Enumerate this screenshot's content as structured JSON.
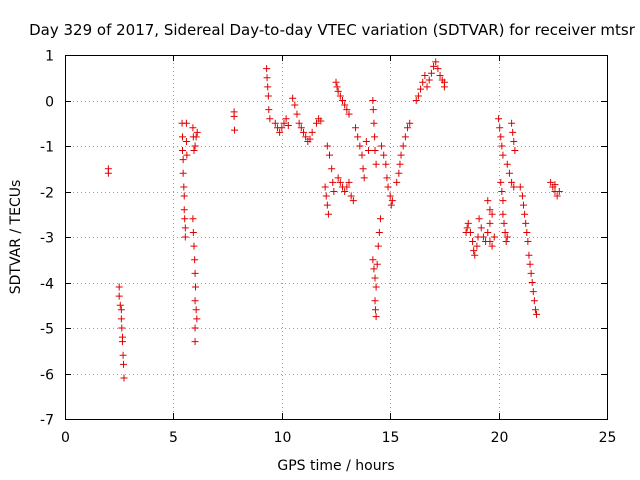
{
  "chart_data": {
    "type": "scatter",
    "title": "Day 329 of 2017, Sidereal Day-to-day VTEC variation (SDTVAR) for receiver mtsr",
    "xlabel": "GPS time / hours",
    "ylabel": "SDTVAR / TECUs",
    "xlim": [
      0,
      25
    ],
    "ylim": [
      -7,
      1
    ],
    "xticks": [
      "0",
      "5",
      "10",
      "15",
      "20",
      "25"
    ],
    "yticks": [
      "1",
      "0",
      "-1",
      "-2",
      "-3",
      "-4",
      "-5",
      "-6",
      "-7"
    ],
    "grid": true,
    "marker": "+",
    "marker_color": "#e00000",
    "series": [
      {
        "name": "SDTVAR",
        "points": [
          [
            2.0,
            -1.5
          ],
          [
            2.0,
            -1.6
          ],
          [
            2.5,
            -4.1
          ],
          [
            2.5,
            -4.3
          ],
          [
            2.55,
            -4.5
          ],
          [
            2.6,
            -4.6
          ],
          [
            2.6,
            -4.8
          ],
          [
            2.62,
            -5.0
          ],
          [
            2.65,
            -5.2
          ],
          [
            2.65,
            -5.3
          ],
          [
            2.68,
            -5.6
          ],
          [
            2.7,
            -5.8
          ],
          [
            2.72,
            -6.1
          ],
          [
            5.4,
            -0.5
          ],
          [
            5.42,
            -0.8
          ],
          [
            5.42,
            -1.1
          ],
          [
            5.45,
            -1.3
          ],
          [
            5.45,
            -1.6
          ],
          [
            5.48,
            -1.9
          ],
          [
            5.5,
            -2.1
          ],
          [
            5.5,
            -2.4
          ],
          [
            5.52,
            -2.6
          ],
          [
            5.55,
            -2.8
          ],
          [
            5.55,
            -3.0
          ],
          [
            5.6,
            -0.5
          ],
          [
            5.6,
            -0.9
          ],
          [
            5.62,
            -1.2
          ],
          [
            5.9,
            -0.6
          ],
          [
            5.92,
            -0.8
          ],
          [
            5.95,
            -1.1
          ],
          [
            6.0,
            -1.0
          ],
          [
            6.05,
            -0.8
          ],
          [
            6.1,
            -0.7
          ],
          [
            5.9,
            -2.6
          ],
          [
            5.92,
            -2.9
          ],
          [
            5.95,
            -3.2
          ],
          [
            5.98,
            -3.5
          ],
          [
            6.0,
            -3.8
          ],
          [
            6.02,
            -4.1
          ],
          [
            6.0,
            -4.4
          ],
          [
            6.05,
            -4.6
          ],
          [
            6.08,
            -4.8
          ],
          [
            6.0,
            -5.0
          ],
          [
            6.0,
            -5.3
          ],
          [
            7.8,
            -0.25
          ],
          [
            7.8,
            -0.35
          ],
          [
            7.82,
            -0.65
          ],
          [
            9.3,
            0.7
          ],
          [
            9.32,
            0.5
          ],
          [
            9.35,
            0.3
          ],
          [
            9.38,
            0.1
          ],
          [
            9.4,
            -0.2
          ],
          [
            9.45,
            -0.4
          ],
          [
            9.7,
            -0.5
          ],
          [
            9.8,
            -0.6
          ],
          [
            9.9,
            -0.7
          ],
          [
            10.0,
            -0.6
          ],
          [
            10.1,
            -0.5
          ],
          [
            10.2,
            -0.4
          ],
          [
            10.3,
            -0.55
          ],
          [
            10.5,
            0.05
          ],
          [
            10.6,
            -0.1
          ],
          [
            10.7,
            -0.3
          ],
          [
            10.8,
            -0.5
          ],
          [
            10.9,
            -0.6
          ],
          [
            11.0,
            -0.7
          ],
          [
            11.1,
            -0.8
          ],
          [
            11.2,
            -0.9
          ],
          [
            11.3,
            -0.85
          ],
          [
            11.4,
            -0.7
          ],
          [
            11.6,
            -0.5
          ],
          [
            11.7,
            -0.4
          ],
          [
            11.8,
            -0.45
          ],
          [
            12.0,
            -1.9
          ],
          [
            12.05,
            -2.1
          ],
          [
            12.1,
            -2.3
          ],
          [
            12.15,
            -2.5
          ],
          [
            12.1,
            -1.0
          ],
          [
            12.2,
            -1.2
          ],
          [
            12.3,
            -1.5
          ],
          [
            12.35,
            -1.8
          ],
          [
            12.4,
            -2.0
          ],
          [
            12.5,
            0.4
          ],
          [
            12.55,
            0.3
          ],
          [
            12.6,
            0.2
          ],
          [
            12.7,
            0.1
          ],
          [
            12.8,
            0.0
          ],
          [
            12.9,
            -0.1
          ],
          [
            13.0,
            -0.2
          ],
          [
            13.1,
            -0.3
          ],
          [
            12.6,
            -1.7
          ],
          [
            12.7,
            -1.8
          ],
          [
            12.8,
            -1.9
          ],
          [
            12.9,
            -2.0
          ],
          [
            13.0,
            -1.9
          ],
          [
            13.1,
            -1.8
          ],
          [
            13.2,
            -2.1
          ],
          [
            13.3,
            -2.2
          ],
          [
            13.4,
            -0.6
          ],
          [
            13.5,
            -0.8
          ],
          [
            13.6,
            -1.0
          ],
          [
            13.7,
            -1.2
          ],
          [
            13.75,
            -1.5
          ],
          [
            13.8,
            -1.7
          ],
          [
            13.9,
            -0.9
          ],
          [
            14.0,
            -1.1
          ],
          [
            14.2,
            0.0
          ],
          [
            14.22,
            -0.2
          ],
          [
            14.25,
            -0.5
          ],
          [
            14.28,
            -0.8
          ],
          [
            14.3,
            -1.1
          ],
          [
            14.35,
            -1.4
          ],
          [
            14.2,
            -3.5
          ],
          [
            14.25,
            -3.7
          ],
          [
            14.3,
            -3.9
          ],
          [
            14.35,
            -4.1
          ],
          [
            14.4,
            -3.6
          ],
          [
            14.45,
            -3.2
          ],
          [
            14.5,
            -2.9
          ],
          [
            14.55,
            -2.6
          ],
          [
            14.3,
            -4.4
          ],
          [
            14.32,
            -4.6
          ],
          [
            14.35,
            -4.75
          ],
          [
            14.6,
            -1.0
          ],
          [
            14.7,
            -1.2
          ],
          [
            14.8,
            -1.4
          ],
          [
            14.85,
            -1.7
          ],
          [
            14.9,
            -1.9
          ],
          [
            15.0,
            -2.1
          ],
          [
            15.05,
            -2.3
          ],
          [
            15.1,
            -2.2
          ],
          [
            15.3,
            -1.8
          ],
          [
            15.4,
            -1.6
          ],
          [
            15.45,
            -1.4
          ],
          [
            15.5,
            -1.2
          ],
          [
            15.6,
            -1.0
          ],
          [
            15.7,
            -0.8
          ],
          [
            15.8,
            -0.6
          ],
          [
            15.9,
            -0.5
          ],
          [
            16.2,
            0.0
          ],
          [
            16.3,
            0.1
          ],
          [
            16.4,
            0.25
          ],
          [
            16.5,
            0.4
          ],
          [
            16.6,
            0.55
          ],
          [
            16.7,
            0.3
          ],
          [
            16.8,
            0.45
          ],
          [
            16.9,
            0.6
          ],
          [
            17.0,
            0.75
          ],
          [
            17.1,
            0.85
          ],
          [
            17.2,
            0.7
          ],
          [
            17.3,
            0.55
          ],
          [
            17.4,
            0.45
          ],
          [
            17.5,
            0.4
          ],
          [
            17.5,
            0.3
          ],
          [
            18.5,
            -2.9
          ],
          [
            18.55,
            -2.8
          ],
          [
            18.6,
            -2.7
          ],
          [
            18.7,
            -2.9
          ],
          [
            18.8,
            -3.1
          ],
          [
            18.85,
            -3.3
          ],
          [
            18.9,
            -3.4
          ],
          [
            19.0,
            -3.2
          ],
          [
            19.05,
            -3.0
          ],
          [
            19.1,
            -2.6
          ],
          [
            19.2,
            -2.8
          ],
          [
            19.3,
            -3.0
          ],
          [
            19.4,
            -3.1
          ],
          [
            19.5,
            -2.9
          ],
          [
            19.6,
            -2.7
          ],
          [
            19.5,
            -2.2
          ],
          [
            19.6,
            -2.4
          ],
          [
            19.7,
            -2.5
          ],
          [
            19.6,
            -3.1
          ],
          [
            19.7,
            -3.2
          ],
          [
            19.8,
            -3.0
          ],
          [
            20.0,
            -0.4
          ],
          [
            20.05,
            -0.6
          ],
          [
            20.1,
            -0.8
          ],
          [
            20.15,
            -1.0
          ],
          [
            20.2,
            -1.2
          ],
          [
            20.1,
            -1.8
          ],
          [
            20.15,
            -2.0
          ],
          [
            20.2,
            -2.2
          ],
          [
            20.2,
            -2.5
          ],
          [
            20.25,
            -2.7
          ],
          [
            20.3,
            -2.9
          ],
          [
            20.35,
            -3.1
          ],
          [
            20.4,
            -3.0
          ],
          [
            20.4,
            -1.4
          ],
          [
            20.5,
            -1.6
          ],
          [
            20.6,
            -1.8
          ],
          [
            20.7,
            -1.9
          ],
          [
            20.6,
            -0.5
          ],
          [
            20.65,
            -0.7
          ],
          [
            20.7,
            -0.9
          ],
          [
            20.75,
            -1.1
          ],
          [
            21.0,
            -1.9
          ],
          [
            21.1,
            -2.1
          ],
          [
            21.15,
            -2.3
          ],
          [
            21.2,
            -2.5
          ],
          [
            21.25,
            -2.7
          ],
          [
            21.3,
            -2.9
          ],
          [
            21.35,
            -3.1
          ],
          [
            21.4,
            -3.4
          ],
          [
            21.45,
            -3.6
          ],
          [
            21.5,
            -3.8
          ],
          [
            21.55,
            -4.0
          ],
          [
            21.6,
            -4.2
          ],
          [
            21.65,
            -4.4
          ],
          [
            21.7,
            -4.6
          ],
          [
            21.75,
            -4.7
          ],
          [
            22.4,
            -1.8
          ],
          [
            22.5,
            -1.9
          ],
          [
            22.6,
            -2.0
          ],
          [
            22.7,
            -2.1
          ],
          [
            22.8,
            -2.0
          ],
          [
            22.6,
            -1.85
          ]
        ]
      }
    ]
  }
}
